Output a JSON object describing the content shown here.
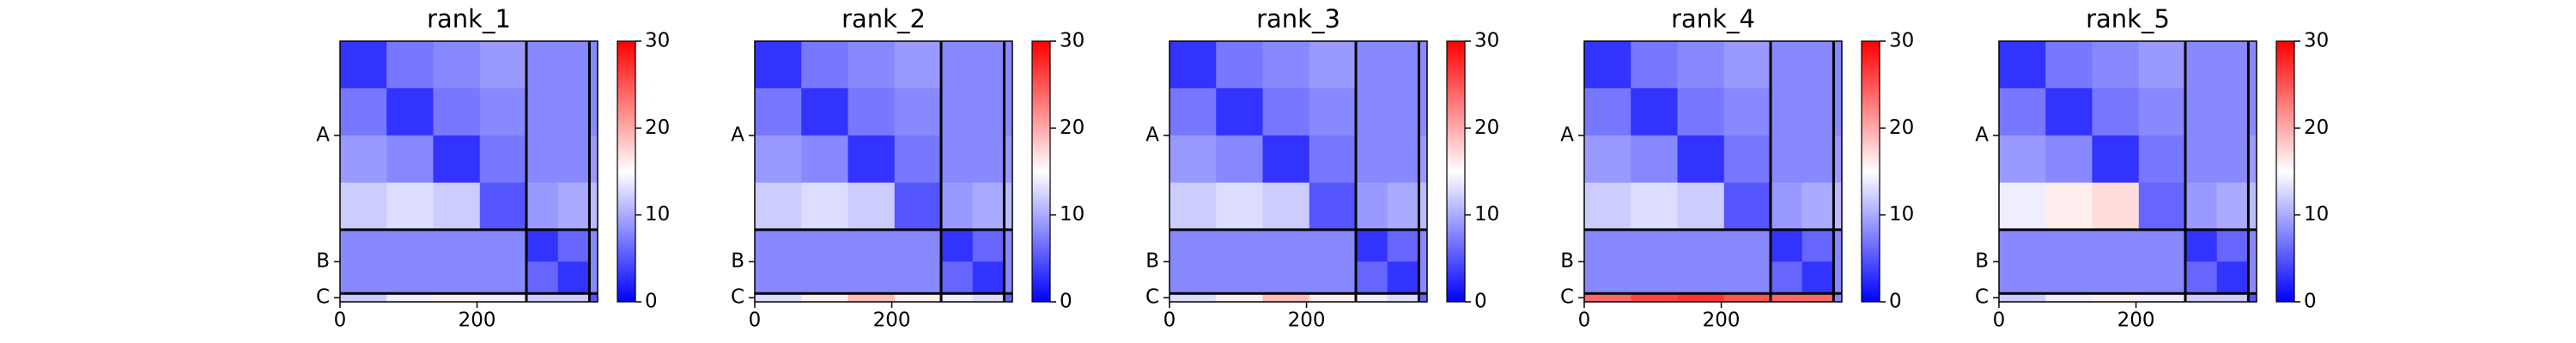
{
  "chart_data": [
    {
      "type": "heatmap",
      "title": "rank_1",
      "colormap": "bwr",
      "xbins": [
        0,
        68,
        136,
        204,
        272,
        318,
        364,
        376
      ],
      "ybins": [
        0,
        68,
        136,
        204,
        272,
        318,
        364,
        376
      ],
      "values": [
        [
          3,
          7,
          8,
          9,
          8,
          8,
          8
        ],
        [
          7,
          3,
          7,
          8,
          8,
          8,
          8
        ],
        [
          9,
          8,
          3,
          7,
          8,
          8,
          9
        ],
        [
          12,
          13,
          12,
          5,
          9,
          10,
          11
        ],
        [
          8,
          8,
          8,
          8,
          3,
          6,
          8
        ],
        [
          8,
          8,
          8,
          8,
          6,
          3,
          8
        ],
        [
          12,
          14,
          16,
          14,
          12,
          12,
          5
        ]
      ],
      "xlim": [
        0,
        376
      ],
      "ylim": [
        376,
        0
      ],
      "xticks": [
        0,
        200
      ],
      "yticks": [
        {
          "value": 136,
          "label": "A"
        },
        {
          "value": 318,
          "label": "B"
        },
        {
          "value": 370,
          "label": "C"
        }
      ],
      "boundaries": [
        272,
        364
      ],
      "clim": [
        0,
        30
      ],
      "cticks": [
        0,
        10,
        20,
        30
      ]
    },
    {
      "type": "heatmap",
      "title": "rank_2",
      "colormap": "bwr",
      "xbins": [
        0,
        68,
        136,
        204,
        272,
        318,
        364,
        376
      ],
      "ybins": [
        0,
        68,
        136,
        204,
        272,
        318,
        364,
        376
      ],
      "values": [
        [
          3,
          7,
          8,
          9,
          8,
          8,
          8
        ],
        [
          7,
          3,
          7,
          8,
          8,
          8,
          8
        ],
        [
          9,
          8,
          3,
          7,
          8,
          8,
          9
        ],
        [
          12,
          13,
          12,
          5,
          9,
          10,
          11
        ],
        [
          8,
          8,
          8,
          8,
          3,
          6,
          8
        ],
        [
          8,
          8,
          8,
          8,
          6,
          3,
          8
        ],
        [
          13,
          16,
          19,
          16,
          14,
          13,
          6
        ]
      ],
      "xlim": [
        0,
        376
      ],
      "ylim": [
        376,
        0
      ],
      "xticks": [
        0,
        200
      ],
      "yticks": [
        {
          "value": 136,
          "label": "A"
        },
        {
          "value": 318,
          "label": "B"
        },
        {
          "value": 370,
          "label": "C"
        }
      ],
      "boundaries": [
        272,
        364
      ],
      "clim": [
        0,
        30
      ],
      "cticks": [
        0,
        10,
        20,
        30
      ]
    },
    {
      "type": "heatmap",
      "title": "rank_3",
      "colormap": "bwr",
      "xbins": [
        0,
        68,
        136,
        204,
        272,
        318,
        364,
        376
      ],
      "ybins": [
        0,
        68,
        136,
        204,
        272,
        318,
        364,
        376
      ],
      "values": [
        [
          3,
          7,
          8,
          9,
          8,
          8,
          8
        ],
        [
          7,
          3,
          7,
          8,
          8,
          8,
          8
        ],
        [
          9,
          8,
          3,
          7,
          8,
          8,
          9
        ],
        [
          12,
          13,
          12,
          5,
          9,
          10,
          11
        ],
        [
          8,
          8,
          8,
          8,
          3,
          6,
          8
        ],
        [
          8,
          8,
          8,
          8,
          6,
          3,
          8
        ],
        [
          13,
          16,
          19,
          16,
          14,
          13,
          6
        ]
      ],
      "xlim": [
        0,
        376
      ],
      "ylim": [
        376,
        0
      ],
      "xticks": [
        0,
        200
      ],
      "yticks": [
        {
          "value": 136,
          "label": "A"
        },
        {
          "value": 318,
          "label": "B"
        },
        {
          "value": 370,
          "label": "C"
        }
      ],
      "boundaries": [
        272,
        364
      ],
      "clim": [
        0,
        30
      ],
      "cticks": [
        0,
        10,
        20,
        30
      ]
    },
    {
      "type": "heatmap",
      "title": "rank_4",
      "colormap": "bwr",
      "xbins": [
        0,
        68,
        136,
        204,
        272,
        318,
        364,
        376
      ],
      "ybins": [
        0,
        68,
        136,
        204,
        272,
        318,
        364,
        376
      ],
      "values": [
        [
          3,
          7,
          8,
          9,
          8,
          8,
          8
        ],
        [
          7,
          3,
          7,
          8,
          8,
          8,
          8
        ],
        [
          9,
          8,
          3,
          7,
          8,
          8,
          9
        ],
        [
          12,
          13,
          12,
          5,
          9,
          10,
          11
        ],
        [
          8,
          8,
          8,
          8,
          3,
          6,
          8
        ],
        [
          8,
          8,
          8,
          8,
          6,
          3,
          8
        ],
        [
          24,
          26,
          27,
          25,
          24,
          24,
          8
        ]
      ],
      "xlim": [
        0,
        376
      ],
      "ylim": [
        376,
        0
      ],
      "xticks": [
        0,
        200
      ],
      "yticks": [
        {
          "value": 136,
          "label": "A"
        },
        {
          "value": 318,
          "label": "B"
        },
        {
          "value": 370,
          "label": "C"
        }
      ],
      "boundaries": [
        272,
        364
      ],
      "clim": [
        0,
        30
      ],
      "cticks": [
        0,
        10,
        20,
        30
      ]
    },
    {
      "type": "heatmap",
      "title": "rank_5",
      "colormap": "bwr",
      "xbins": [
        0,
        68,
        136,
        204,
        272,
        318,
        364,
        376
      ],
      "ybins": [
        0,
        68,
        136,
        204,
        272,
        318,
        364,
        376
      ],
      "values": [
        [
          3,
          7,
          8,
          9,
          8,
          8,
          8
        ],
        [
          7,
          3,
          7,
          8,
          8,
          8,
          8
        ],
        [
          9,
          8,
          3,
          7,
          8,
          8,
          9
        ],
        [
          14,
          16,
          17,
          6,
          9,
          10,
          11
        ],
        [
          8,
          8,
          8,
          8,
          3,
          6,
          8
        ],
        [
          8,
          8,
          8,
          8,
          6,
          3,
          8
        ],
        [
          12,
          14,
          16,
          14,
          12,
          12,
          5
        ]
      ],
      "xlim": [
        0,
        376
      ],
      "ylim": [
        376,
        0
      ],
      "xticks": [
        0,
        200
      ],
      "yticks": [
        {
          "value": 136,
          "label": "A"
        },
        {
          "value": 318,
          "label": "B"
        },
        {
          "value": 370,
          "label": "C"
        }
      ],
      "boundaries": [
        272,
        364
      ],
      "clim": [
        0,
        30
      ],
      "cticks": [
        0,
        10,
        20,
        30
      ]
    }
  ]
}
